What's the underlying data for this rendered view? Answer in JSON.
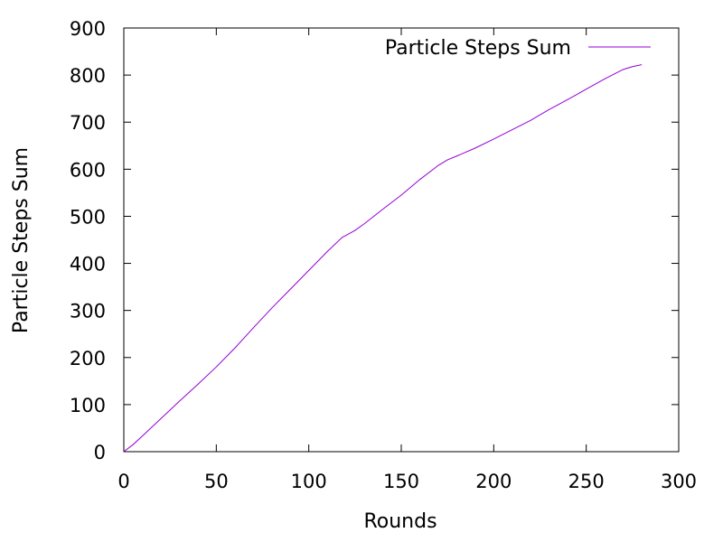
{
  "chart_data": {
    "type": "line",
    "title": "",
    "xlabel": "Rounds",
    "ylabel": "Particle Steps Sum",
    "xlim": [
      0,
      300
    ],
    "ylim": [
      0,
      900
    ],
    "x_ticks": [
      0,
      50,
      100,
      150,
      200,
      250,
      300
    ],
    "y_ticks": [
      0,
      100,
      200,
      300,
      400,
      500,
      600,
      700,
      800,
      900
    ],
    "grid": false,
    "legend_position": "top-right",
    "series": [
      {
        "name": "Particle Steps Sum",
        "color": "#9400d3",
        "x": [
          0,
          5,
          10,
          20,
          30,
          40,
          50,
          60,
          70,
          80,
          90,
          100,
          110,
          118,
          125,
          130,
          140,
          150,
          160,
          170,
          175,
          180,
          190,
          200,
          210,
          220,
          230,
          240,
          250,
          260,
          270,
          275,
          280
        ],
        "y": [
          0,
          15,
          33,
          70,
          107,
          143,
          180,
          220,
          263,
          305,
          345,
          385,
          425,
          455,
          470,
          484,
          515,
          545,
          578,
          608,
          620,
          628,
          645,
          664,
          684,
          704,
          727,
          748,
          770,
          792,
          812,
          818,
          822
        ]
      }
    ]
  }
}
